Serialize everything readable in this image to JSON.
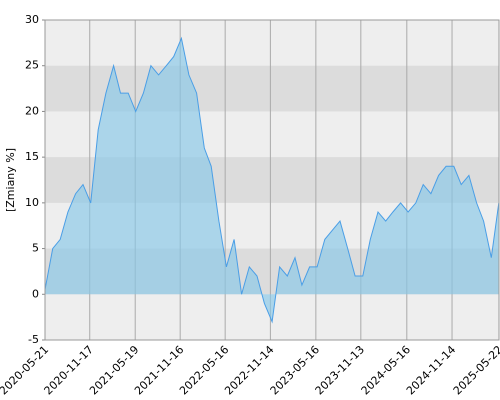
{
  "chart_data": {
    "type": "area",
    "y_label": "[Zmiany %]",
    "x": [
      "2020-05-21",
      "2020-06-21",
      "2020-07-21",
      "2020-08-21",
      "2020-09-21",
      "2020-10-21",
      "2020-11-21",
      "2020-12-21",
      "2021-01-21",
      "2021-02-21",
      "2021-03-21",
      "2021-04-21",
      "2021-05-21",
      "2021-06-21",
      "2021-07-21",
      "2021-08-21",
      "2021-09-21",
      "2021-10-21",
      "2021-11-21",
      "2021-12-21",
      "2022-01-21",
      "2022-02-21",
      "2022-03-21",
      "2022-04-21",
      "2022-05-21",
      "2022-06-21",
      "2022-07-21",
      "2022-08-21",
      "2022-09-21",
      "2022-10-21",
      "2022-11-21",
      "2022-12-21",
      "2023-01-21",
      "2023-02-21",
      "2023-03-21",
      "2023-04-21",
      "2023-05-21",
      "2023-06-21",
      "2023-07-21",
      "2023-08-21",
      "2023-09-21",
      "2023-10-21",
      "2023-11-21",
      "2023-12-21",
      "2024-01-21",
      "2024-02-21",
      "2024-03-21",
      "2024-04-21",
      "2024-05-21",
      "2024-06-21",
      "2024-07-21",
      "2024-08-21",
      "2024-09-21",
      "2024-10-21",
      "2024-11-21",
      "2024-12-21",
      "2025-01-21",
      "2025-02-21",
      "2025-03-21",
      "2025-04-21",
      "2025-05-21"
    ],
    "series": [
      {
        "name": "Zmiany",
        "color": "#4a9ee6",
        "values": [
          0.5,
          5,
          6,
          9,
          11,
          12,
          10,
          18,
          22,
          25,
          22,
          22,
          20,
          22,
          25,
          24,
          25,
          26,
          28,
          24,
          22,
          16,
          14,
          8,
          3,
          6,
          0,
          3,
          2,
          -1,
          -3,
          3,
          2,
          4,
          1,
          3,
          3,
          6,
          7,
          8,
          5,
          2,
          2,
          6,
          9,
          8,
          9,
          10,
          9,
          10,
          12,
          11,
          13,
          14,
          14,
          12,
          13,
          10,
          8,
          4,
          10
        ]
      }
    ],
    "xlim": [
      "2020-05-21",
      "2025-05-22"
    ],
    "xticks": [
      "2020-05-21",
      "2020-11-17",
      "2021-05-19",
      "2021-11-16",
      "2022-05-16",
      "2022-11-14",
      "2023-05-16",
      "2023-11-13",
      "2024-05-16",
      "2024-11-14",
      "2025-05-22"
    ],
    "ylim": [
      -5,
      30
    ],
    "yticks": [
      -5,
      0,
      5,
      10,
      15,
      20,
      25,
      30
    ],
    "grid": true
  }
}
